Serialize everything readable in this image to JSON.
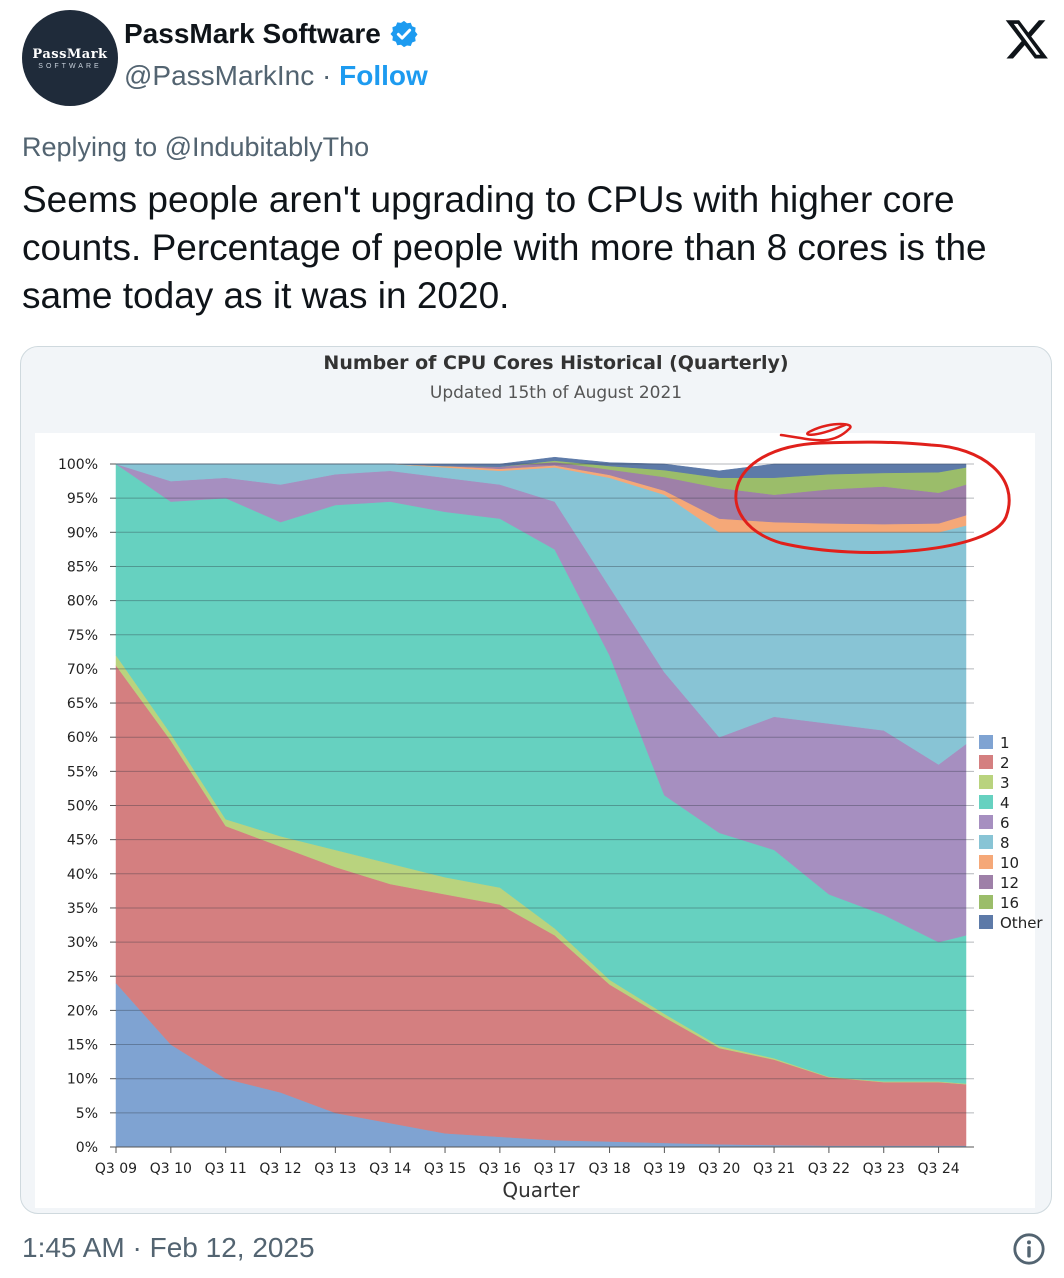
{
  "tweet": {
    "avatar_line1": "PassMark",
    "avatar_line2": "SOFTWARE",
    "display_name": "PassMark Software",
    "handle": "@PassMarkInc",
    "separator": " · ",
    "follow_label": "Follow",
    "replying_to": "Replying to @IndubitablyTho",
    "text": "Seems people aren't upgrading to CPUs with higher core counts. Percentage of people with more than 8 cores is the same today as it was in 2020.",
    "timestamp": "1:45 AM · Feb 12, 2025",
    "icons": [
      "verified-badge-icon",
      "x-logo-icon",
      "info-icon"
    ],
    "colors": {
      "follow": "#1d9bf0",
      "verified": "#1d9bf0",
      "annotation": "#e0201b"
    }
  },
  "chart_data": {
    "type": "area",
    "stacked": true,
    "title": "Number of CPU Cores Historical (Quarterly)",
    "subtitle": "Updated 15th of August 2021",
    "xlabel": "Quarter",
    "ylabel": "",
    "ylim": [
      0,
      100
    ],
    "y_ticks": [
      "0%",
      "5%",
      "10%",
      "15%",
      "20%",
      "25%",
      "30%",
      "35%",
      "40%",
      "45%",
      "50%",
      "55%",
      "60%",
      "65%",
      "70%",
      "75%",
      "80%",
      "85%",
      "90%",
      "95%",
      "100%"
    ],
    "x_tick_labels": [
      "Q3 09",
      "Q3 10",
      "Q3 11",
      "Q3 12",
      "Q3 13",
      "Q3 14",
      "Q3 15",
      "Q3 16",
      "Q3 17",
      "Q3 18",
      "Q3 19",
      "Q3 20",
      "Q3 21",
      "Q3 22",
      "Q3 23",
      "Q3 24"
    ],
    "x": [
      2009.0,
      2010.0,
      2011.0,
      2012.0,
      2013.0,
      2014.0,
      2015.0,
      2016.0,
      2017.0,
      2018.0,
      2019.0,
      2020.0,
      2021.0,
      2022.0,
      2023.0,
      2024.0,
      2024.5
    ],
    "legend_position": "right",
    "grid": true,
    "series": [
      {
        "name": "1",
        "color": "#7fa3d2",
        "values": [
          24,
          15,
          10,
          8,
          5,
          3.5,
          2,
          1.5,
          1,
          0.8,
          0.6,
          0.4,
          0.3,
          0.2,
          0.2,
          0.2,
          0.2
        ]
      },
      {
        "name": "2",
        "color": "#d47f80",
        "values": [
          46.5,
          44.5,
          37,
          36,
          36,
          35,
          35,
          34,
          30,
          23,
          18.4,
          14.1,
          12.5,
          10,
          9.3,
          9.3,
          9.0
        ]
      },
      {
        "name": "3",
        "color": "#b9d37e",
        "values": [
          1.5,
          1,
          1,
          1.5,
          2.5,
          3,
          2.5,
          2.5,
          1,
          0.7,
          0.5,
          0.3,
          0.2,
          0.1,
          0.1,
          0.1,
          0.1
        ]
      },
      {
        "name": "4",
        "color": "#66d1c0",
        "values": [
          28,
          34,
          47,
          46,
          50.5,
          53,
          53.5,
          54,
          55.5,
          47.5,
          32,
          31.2,
          30.5,
          26.7,
          24.4,
          20.4,
          21.7
        ]
      },
      {
        "name": "6",
        "color": "#a68fc0",
        "values": [
          0,
          3,
          3,
          5.5,
          4.5,
          4.5,
          5,
          5,
          7,
          10,
          18,
          14,
          19.5,
          25,
          27,
          26,
          28
        ]
      },
      {
        "name": "8",
        "color": "#88c4d5",
        "values": [
          0,
          2.5,
          2,
          3,
          1.5,
          1,
          1.5,
          2,
          5,
          16,
          26,
          30,
          27,
          28,
          29,
          34,
          32
        ]
      },
      {
        "name": "10",
        "color": "#f5a878",
        "values": [
          0,
          0,
          0,
          0,
          0,
          0,
          0.2,
          0.3,
          0.3,
          0.4,
          0.6,
          2,
          1.5,
          1.3,
          1.2,
          1.3,
          1.5
        ]
      },
      {
        "name": "12",
        "color": "#9e80a8",
        "values": [
          0,
          0,
          0,
          0,
          0,
          0,
          0,
          0.3,
          0.5,
          0.8,
          2,
          4.5,
          4,
          5,
          5.5,
          4.5,
          4.5
        ]
      },
      {
        "name": "16",
        "color": "#9bbd6a",
        "values": [
          0,
          0,
          0,
          0,
          0,
          0,
          0,
          0,
          0.2,
          0.5,
          1,
          1.5,
          2.5,
          2.2,
          2,
          3,
          2.5
        ]
      },
      {
        "name": "Other",
        "color": "#5d7aa8",
        "values": [
          0,
          0,
          0,
          0,
          0,
          0,
          0.3,
          0.4,
          0.5,
          0.5,
          0.9,
          1.0,
          2.0,
          1.5,
          1.3,
          1.2,
          0.5
        ]
      }
    ]
  }
}
